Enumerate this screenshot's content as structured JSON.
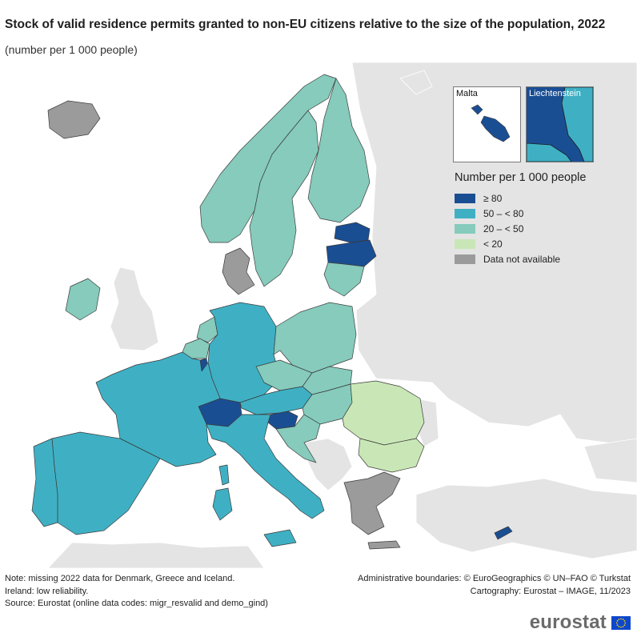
{
  "title": "Stock of valid residence permits granted to non-EU citizens relative to the size of the population, 2022",
  "subtitle": "(number per 1 000 people)",
  "insets": [
    {
      "label": "Malta",
      "class_index": 0
    },
    {
      "label": "Liechtenstein",
      "class_index": 0
    }
  ],
  "legend": {
    "title": "Number per 1 000 people",
    "classes": [
      {
        "label": "≥ 80",
        "color": "#1a4e93"
      },
      {
        "label": "50 – < 80",
        "color": "#3fb0c4"
      },
      {
        "label": "20 – < 50",
        "color": "#86cbbc"
      },
      {
        "label": "< 20",
        "color": "#c9e7b6"
      },
      {
        "label": "Data not available",
        "color": "#9b9b9b"
      }
    ]
  },
  "colors": {
    "sea": "#ffffff",
    "non_covered": "#e4e4e4",
    "border": "#3a3a3a"
  },
  "countries": [
    {
      "name": "Portugal",
      "class_index": 1
    },
    {
      "name": "Spain",
      "class_index": 1
    },
    {
      "name": "France",
      "class_index": 1
    },
    {
      "name": "Belgium",
      "class_index": 2
    },
    {
      "name": "Netherlands",
      "class_index": 2
    },
    {
      "name": "Luxembourg",
      "class_index": 0
    },
    {
      "name": "Germany",
      "class_index": 1
    },
    {
      "name": "Denmark",
      "class_index": 4
    },
    {
      "name": "Switzerland",
      "class_index": 0
    },
    {
      "name": "Italy",
      "class_index": 1
    },
    {
      "name": "Austria",
      "class_index": 1
    },
    {
      "name": "Czechia",
      "class_index": 2
    },
    {
      "name": "Poland",
      "class_index": 2
    },
    {
      "name": "Slovakia",
      "class_index": 2
    },
    {
      "name": "Hungary",
      "class_index": 2
    },
    {
      "name": "Slovenia",
      "class_index": 0
    },
    {
      "name": "Croatia",
      "class_index": 2
    },
    {
      "name": "Romania",
      "class_index": 3
    },
    {
      "name": "Bulgaria",
      "class_index": 3
    },
    {
      "name": "Greece",
      "class_index": 4
    },
    {
      "name": "Cyprus",
      "class_index": 0
    },
    {
      "name": "Norway",
      "class_index": 2
    },
    {
      "name": "Sweden",
      "class_index": 2
    },
    {
      "name": "Finland",
      "class_index": 2
    },
    {
      "name": "Estonia",
      "class_index": 0
    },
    {
      "name": "Latvia",
      "class_index": 0
    },
    {
      "name": "Lithuania",
      "class_index": 2
    },
    {
      "name": "Ireland",
      "class_index": 2
    },
    {
      "name": "Iceland",
      "class_index": 4
    }
  ],
  "notes": {
    "left": [
      "Note: missing 2022 data for Denmark, Greece and Iceland.",
      "Ireland: low reliability.",
      "Source: Eurostat (online data codes: migr_resvalid and demo_gind)"
    ],
    "right": [
      "Administrative boundaries: © EuroGeographics © UN–FAO © Turkstat",
      "Cartography: Eurostat – IMAGE, 11/2023"
    ]
  },
  "logo_text": "eurostat"
}
